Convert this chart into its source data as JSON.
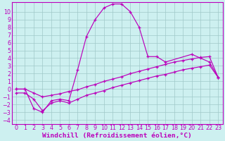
{
  "bg_color": "#cdf0f0",
  "line_color": "#bb00bb",
  "grid_color": "#a0c8c8",
  "xlabel": "Windchill (Refroidissement éolien,°C)",
  "xlabel_fontsize": 6.8,
  "tick_fontsize": 5.8,
  "ylim": [
    -4.5,
    11.2
  ],
  "xlim": [
    -0.5,
    23.5
  ],
  "yticks": [
    10,
    9,
    8,
    7,
    6,
    5,
    4,
    3,
    2,
    1,
    0,
    -1,
    -2,
    -3,
    -4
  ],
  "xticks": [
    0,
    1,
    2,
    3,
    4,
    5,
    6,
    7,
    8,
    9,
    10,
    11,
    12,
    13,
    14,
    15,
    16,
    17,
    18,
    19,
    20,
    21,
    22,
    23
  ],
  "line1_x": [
    0,
    1,
    2,
    3,
    4,
    5,
    6,
    7,
    8,
    9,
    10,
    11,
    12,
    13,
    14,
    15,
    16,
    17,
    20,
    21,
    22,
    23
  ],
  "line1_y": [
    0.0,
    0.0,
    -2.5,
    -3.0,
    -1.5,
    -1.3,
    -1.5,
    2.5,
    6.8,
    9.0,
    10.5,
    11.0,
    11.0,
    10.0,
    8.0,
    4.2,
    4.2,
    3.5,
    4.5,
    4.0,
    3.5,
    1.5
  ],
  "line2_x": [
    0,
    1,
    2,
    3,
    4,
    5,
    6,
    7,
    8,
    9,
    10,
    11,
    12,
    13,
    14,
    15,
    16,
    17,
    18,
    19,
    20,
    21,
    22,
    23
  ],
  "line2_y": [
    0.0,
    0.0,
    -0.5,
    -1.0,
    -0.8,
    -0.6,
    -0.3,
    -0.1,
    0.3,
    0.6,
    1.0,
    1.3,
    1.6,
    2.0,
    2.3,
    2.6,
    2.9,
    3.2,
    3.5,
    3.7,
    3.9,
    4.1,
    4.2,
    1.5
  ],
  "line3_x": [
    0,
    1,
    2,
    3,
    4,
    5,
    6,
    7,
    8,
    9,
    10,
    11,
    12,
    13,
    14,
    15,
    16,
    17,
    18,
    19,
    20,
    21,
    22,
    23
  ],
  "line3_y": [
    -0.5,
    -0.5,
    -1.3,
    -2.8,
    -1.8,
    -1.5,
    -1.8,
    -1.3,
    -0.8,
    -0.5,
    -0.2,
    0.2,
    0.5,
    0.8,
    1.1,
    1.4,
    1.7,
    1.9,
    2.2,
    2.5,
    2.7,
    2.9,
    3.1,
    1.5
  ]
}
